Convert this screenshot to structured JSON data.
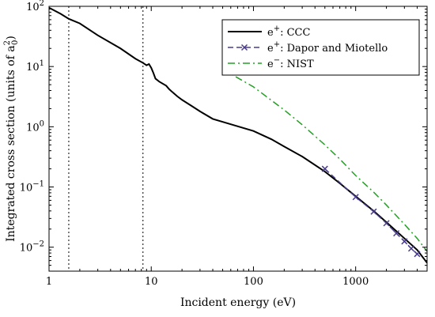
{
  "chart_data": {
    "type": "line",
    "x_scale": "log",
    "y_scale": "log",
    "xlim": [
      1,
      5000
    ],
    "ylim": [
      0.004,
      100
    ],
    "xlabel": "Incident energy (eV)",
    "ylabel": "Integrated cross section (units of a",
    "ylabel_sub": "0",
    "ylabel_sup": "2",
    "ylabel_close": ")",
    "x_ticks": [
      {
        "value": 1,
        "label": "1"
      },
      {
        "value": 10,
        "label": "10"
      },
      {
        "value": 100,
        "label": "100"
      },
      {
        "value": 1000,
        "label": "1000"
      }
    ],
    "y_ticks": [
      {
        "value": 100,
        "base": "10",
        "exp": "2"
      },
      {
        "value": 10,
        "base": "10",
        "exp": "1"
      },
      {
        "value": 1,
        "base": "10",
        "exp": "0"
      },
      {
        "value": 0.1,
        "base": "10",
        "exp": "−1"
      },
      {
        "value": 0.01,
        "base": "10",
        "exp": "−2"
      }
    ],
    "vlines": [
      1.56,
      8.3
    ],
    "grid": false,
    "legend_position": "top-right",
    "series": [
      {
        "name": "CCC",
        "name_base": "e",
        "name_sup": "+",
        "color": "#000000",
        "style": "solid",
        "marker": "none",
        "x": [
          1,
          1.3,
          1.56,
          2,
          3,
          5,
          7,
          8.3,
          9,
          9.5,
          10,
          10.5,
          11,
          12,
          14,
          15,
          16,
          18,
          20,
          25,
          30,
          40,
          60,
          100,
          150,
          200,
          300,
          500,
          700,
          1000,
          1500,
          2000,
          3000,
          4000,
          5000
        ],
        "y": [
          95,
          75,
          62,
          52,
          33,
          20,
          13.5,
          11.5,
          10.5,
          11,
          9.5,
          7.8,
          6.3,
          5.6,
          4.8,
          4.2,
          3.8,
          3.2,
          2.8,
          2.2,
          1.8,
          1.35,
          1.1,
          0.85,
          0.62,
          0.47,
          0.32,
          0.18,
          0.115,
          0.07,
          0.04,
          0.026,
          0.014,
          0.009,
          0.0055
        ]
      },
      {
        "name": "Dapor and Miotello",
        "name_base": "e",
        "name_sup": "+",
        "color": "#4b3c8c",
        "style": "dashed",
        "marker": "x",
        "x": [
          500,
          1000,
          1500,
          2000,
          2500,
          3000,
          3500,
          4000
        ],
        "y": [
          0.2,
          0.068,
          0.039,
          0.025,
          0.017,
          0.0125,
          0.0095,
          0.0077
        ]
      },
      {
        "name": "NIST",
        "name_base": "e",
        "name_sup": "−",
        "color": "#22a022",
        "style": "dashdot",
        "marker": "none",
        "x": [
          50,
          100,
          200,
          300,
          500,
          700,
          1000,
          1500,
          2000,
          3000,
          4000,
          5000
        ],
        "y": [
          9,
          4.6,
          1.9,
          1.08,
          0.5,
          0.29,
          0.155,
          0.082,
          0.05,
          0.024,
          0.014,
          0.0085
        ]
      }
    ]
  }
}
